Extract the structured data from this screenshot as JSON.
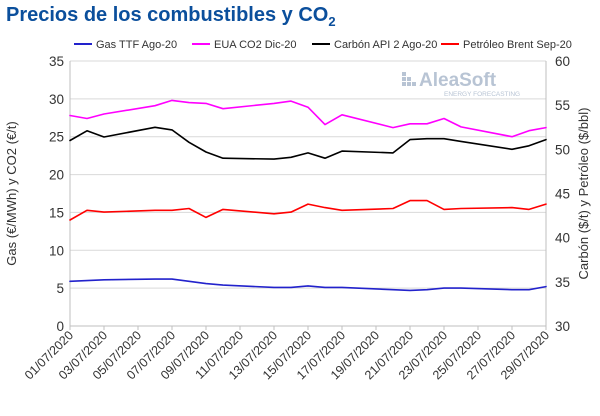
{
  "title": {
    "main": "Precios de los combustibles y CO",
    "sub": "2"
  },
  "logo": {
    "brand": "AleaSoft",
    "tagline": "ENERGY FORECASTING"
  },
  "chart_data": {
    "type": "line",
    "x": [
      "01/07/2020",
      "02/07/2020",
      "03/07/2020",
      "06/07/2020",
      "07/07/2020",
      "08/07/2020",
      "09/07/2020",
      "10/07/2020",
      "13/07/2020",
      "14/07/2020",
      "15/07/2020",
      "16/07/2020",
      "17/07/2020",
      "20/07/2020",
      "21/07/2020",
      "22/07/2020",
      "23/07/2020",
      "24/07/2020",
      "27/07/2020",
      "28/07/2020",
      "29/07/2020"
    ],
    "xticks": [
      "01/07/2020",
      "03/07/2020",
      "05/07/2020",
      "07/07/2020",
      "09/07/2020",
      "11/07/2020",
      "13/07/2020",
      "15/07/2020",
      "17/07/2020",
      "19/07/2020",
      "21/07/2020",
      "23/07/2020",
      "25/07/2020",
      "27/07/2020",
      "29/07/2020"
    ],
    "ylabel_left": "Gas (€/MWh) y CO2 (€/t)",
    "ylabel_right": "Carbón ($/t) y Petróleo ($/bbl)",
    "ylim_left": [
      0,
      35
    ],
    "yticks_left": [
      0,
      5,
      10,
      15,
      20,
      25,
      30,
      35
    ],
    "ylim_right": [
      30,
      60
    ],
    "yticks_right": [
      30,
      35,
      40,
      45,
      50,
      55,
      60
    ],
    "grid": true,
    "legend_position": "top",
    "series": [
      {
        "name": "Gas TTF Ago-20",
        "axis": "left",
        "color": "#2222cc",
        "values": [
          5.9,
          6.0,
          6.1,
          6.2,
          6.2,
          5.9,
          5.6,
          5.4,
          5.1,
          5.1,
          5.3,
          5.1,
          5.1,
          4.8,
          4.7,
          4.8,
          5.0,
          5.0,
          4.8,
          4.8,
          5.2
        ]
      },
      {
        "name": "EUA CO2 Dic-20",
        "axis": "left",
        "color": "#ff00ff",
        "values": [
          27.8,
          27.4,
          28.0,
          29.1,
          29.8,
          29.5,
          29.4,
          28.7,
          29.4,
          29.7,
          28.9,
          26.6,
          27.9,
          26.2,
          26.7,
          26.7,
          27.4,
          26.3,
          25.0,
          25.8,
          26.2
        ]
      },
      {
        "name": "Carbón API 2 Ago-20",
        "axis": "right",
        "color": "#000000",
        "values": [
          51.0,
          52.1,
          51.4,
          52.5,
          52.2,
          50.8,
          49.7,
          49.0,
          48.9,
          49.1,
          49.6,
          49.0,
          49.8,
          49.6,
          51.1,
          51.2,
          51.2,
          50.9,
          50.0,
          50.4,
          51.1
        ]
      },
      {
        "name": "Petróleo Brent Sep-20",
        "axis": "right",
        "color": "#ff0000",
        "values": [
          42.0,
          43.1,
          42.9,
          43.1,
          43.1,
          43.3,
          42.3,
          43.2,
          42.7,
          42.9,
          43.8,
          43.4,
          43.1,
          43.3,
          44.2,
          44.2,
          43.2,
          43.3,
          43.4,
          43.2,
          43.8
        ]
      }
    ]
  }
}
